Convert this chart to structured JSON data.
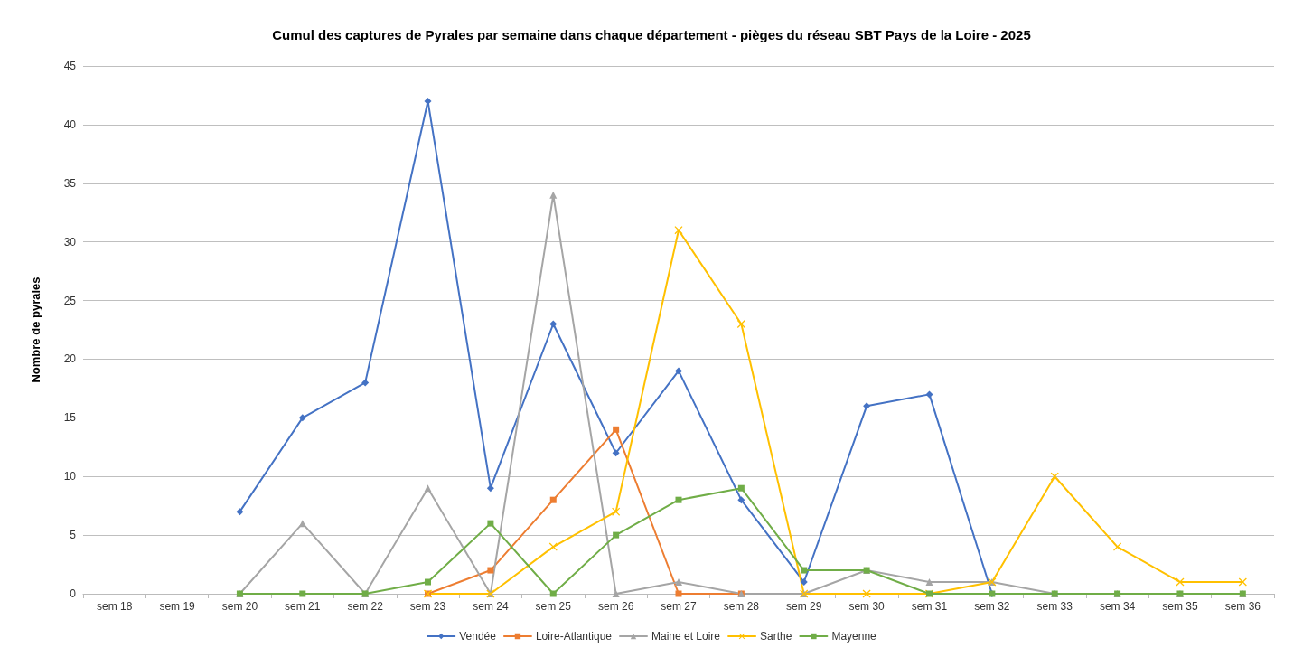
{
  "chart_data": {
    "type": "line",
    "title": "Cumul des captures de Pyrales par semaine dans chaque département - pièges du réseau SBT Pays de la Loire - 2025",
    "ylabel": "Nombre de pyrales",
    "categories": [
      "sem 18",
      "sem 19",
      "sem 20",
      "sem 21",
      "sem 22",
      "sem 23",
      "sem 24",
      "sem 25",
      "sem 26",
      "sem 27",
      "sem 28",
      "sem 29",
      "sem 30",
      "sem 31",
      "sem 32",
      "sem 33",
      "sem 34",
      "sem 35",
      "sem 36"
    ],
    "series": [
      {
        "name": "Vendée",
        "color": "#4472c4",
        "marker": "diamond",
        "values": [
          null,
          null,
          7,
          15,
          18,
          42,
          9,
          23,
          12,
          19,
          8,
          1,
          16,
          17,
          0,
          0,
          null,
          null,
          null
        ]
      },
      {
        "name": "Loire-Atlantique",
        "color": "#ed7d31",
        "marker": "square",
        "values": [
          null,
          null,
          null,
          null,
          null,
          0,
          2,
          8,
          14,
          0,
          0,
          null,
          null,
          null,
          null,
          null,
          null,
          null,
          null
        ]
      },
      {
        "name": "Maine et Loire",
        "color": "#a5a5a5",
        "marker": "triangle",
        "values": [
          null,
          null,
          0,
          6,
          0,
          9,
          0,
          34,
          0,
          1,
          0,
          0,
          2,
          1,
          1,
          0,
          0,
          0,
          0
        ]
      },
      {
        "name": "Sarthe",
        "color": "#ffc000",
        "marker": "cross",
        "values": [
          null,
          null,
          null,
          null,
          null,
          0,
          0,
          4,
          7,
          31,
          23,
          0,
          0,
          0,
          1,
          10,
          4,
          1,
          1
        ]
      },
      {
        "name": "Mayenne",
        "color": "#70ad47",
        "marker": "square",
        "values": [
          null,
          null,
          0,
          0,
          0,
          1,
          6,
          0,
          5,
          8,
          9,
          2,
          2,
          0,
          0,
          0,
          0,
          0,
          0
        ]
      }
    ],
    "ylim": [
      0,
      45
    ],
    "yticks": [
      0,
      5,
      10,
      15,
      20,
      25,
      30,
      35,
      40,
      45
    ],
    "grid": "y",
    "legend": "bottom",
    "line_style": "solid"
  }
}
